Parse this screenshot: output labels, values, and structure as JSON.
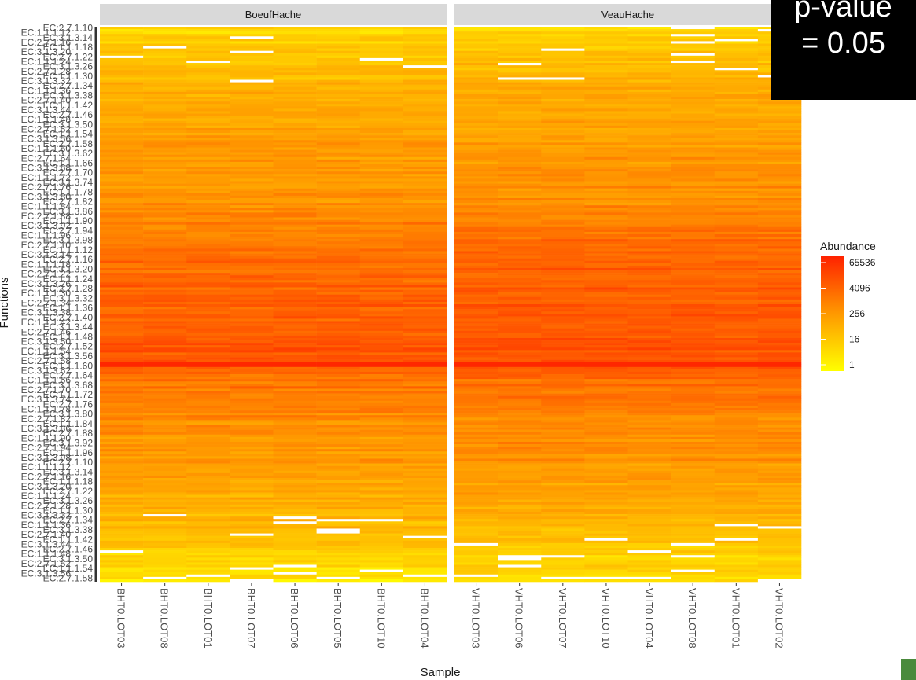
{
  "annotation": {
    "line1": "p-value",
    "line2": "= 0.05"
  },
  "chart_data": {
    "type": "heatmap",
    "title": "",
    "xlabel": "Sample",
    "ylabel": "Functions",
    "facets": [
      {
        "name": "BoeufHache",
        "samples": [
          "BHT0.LOT03",
          "BHT0.LOT08",
          "BHT0.LOT01",
          "BHT0.LOT07",
          "BHT0.LOT06",
          "BHT0.LOT05",
          "BHT0.LOT10",
          "BHT0.LOT04"
        ]
      },
      {
        "name": "VeauHache",
        "samples": [
          "VHT0.LOT03",
          "VHT0.LOT06",
          "VHT0.LOT07",
          "VHT0.LOT10",
          "VHT0.LOT04",
          "VHT0.LOT08",
          "VHT0.LOT01",
          "VHT0.LOT02"
        ]
      }
    ],
    "color_scale": {
      "title": "Abundance",
      "log2": true,
      "breaks": [
        65536,
        4096,
        256,
        16,
        1
      ],
      "low_color": "#ffff00",
      "mid_color": "#ff9900",
      "high_color": "#ff2200",
      "missing_color": "#ffffff"
    },
    "y_tick_prefix": "EC",
    "abundance_profile_log2": [
      [
        0.0,
        3.0
      ],
      [
        0.05,
        4.2
      ],
      [
        0.12,
        6.5
      ],
      [
        0.22,
        7.5
      ],
      [
        0.32,
        8.5
      ],
      [
        0.38,
        10.5
      ],
      [
        0.45,
        11.5
      ],
      [
        0.55,
        12.0
      ],
      [
        0.6,
        12.5
      ],
      [
        0.62,
        11.0
      ],
      [
        0.7,
        9.0
      ],
      [
        0.8,
        7.5
      ],
      [
        0.9,
        5.5
      ],
      [
        0.95,
        3.5
      ],
      [
        1.0,
        2.0
      ]
    ]
  }
}
